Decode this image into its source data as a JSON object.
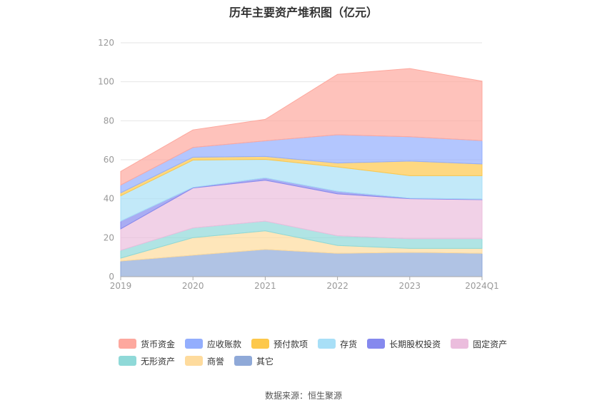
{
  "chart_data": {
    "type": "area",
    "stacked": true,
    "title": "历年主要资产堆积图（亿元）",
    "categories": [
      "2019",
      "2020",
      "2021",
      "2022",
      "2023",
      "2024Q1"
    ],
    "ylim": [
      0,
      120
    ],
    "yticks": [
      0,
      20,
      40,
      60,
      80,
      100,
      120
    ],
    "grid": true,
    "legend_position": "bottom",
    "series": [
      {
        "name": "其它",
        "color": "#8fa9d8",
        "values": [
          8,
          11,
          14,
          12,
          12.5,
          12
        ]
      },
      {
        "name": "商誉",
        "color": "#fedb9d",
        "values": [
          1.5,
          9,
          9.5,
          4,
          2,
          2.5
        ]
      },
      {
        "name": "无形资产",
        "color": "#8fd9d8",
        "values": [
          4,
          5,
          5,
          5,
          5,
          5
        ]
      },
      {
        "name": "固定资产",
        "color": "#ebbddd",
        "values": [
          11,
          20.5,
          21,
          21.5,
          20.5,
          20
        ]
      },
      {
        "name": "长期股权投资",
        "color": "#8589ee",
        "values": [
          4,
          0.3,
          1.2,
          1.3,
          0.3,
          0.3
        ]
      },
      {
        "name": "存货",
        "color": "#a8dff7",
        "values": [
          13,
          14,
          9.5,
          12.5,
          11.5,
          12
        ]
      },
      {
        "name": "预付款项",
        "color": "#fdc84b",
        "values": [
          1.5,
          1.5,
          1.5,
          2,
          7.5,
          6
        ]
      },
      {
        "name": "应收账款",
        "color": "#93aefd",
        "values": [
          4,
          5,
          8,
          14.5,
          12.5,
          12
        ]
      },
      {
        "name": "货币资金",
        "color": "#fda89e",
        "values": [
          7,
          9,
          11,
          31,
          35,
          30.5
        ]
      }
    ],
    "legend_order": [
      "货币资金",
      "应收账款",
      "预付款项",
      "存货",
      "长期股权投资",
      "固定资产",
      "无形资产",
      "商誉",
      "其它"
    ]
  },
  "source_text": "数据来源：恒生聚源"
}
